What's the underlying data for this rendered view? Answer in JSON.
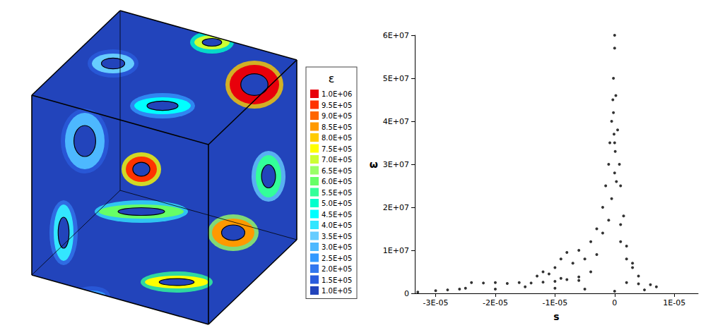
{
  "chart_data": [
    {
      "type": "contour",
      "colorbar": {
        "title": "ε",
        "ticks": [
          {
            "value": 1000000,
            "label": "1.0E+06"
          },
          {
            "value": 950000,
            "label": "9.5E+05"
          },
          {
            "value": 900000,
            "label": "9.0E+05"
          },
          {
            "value": 850000,
            "label": "8.5E+05"
          },
          {
            "value": 800000,
            "label": "8.0E+05"
          },
          {
            "value": 750000,
            "label": "7.5E+05"
          },
          {
            "value": 700000,
            "label": "7.0E+05"
          },
          {
            "value": 650000,
            "label": "6.5E+05"
          },
          {
            "value": 600000,
            "label": "6.0E+05"
          },
          {
            "value": 550000,
            "label": "5.5E+05"
          },
          {
            "value": 500000,
            "label": "5.0E+05"
          },
          {
            "value": 450000,
            "label": "4.5E+05"
          },
          {
            "value": 400000,
            "label": "4.0E+05"
          },
          {
            "value": 350000,
            "label": "3.5E+05"
          },
          {
            "value": 300000,
            "label": "3.0E+05"
          },
          {
            "value": 250000,
            "label": "2.5E+05"
          },
          {
            "value": 200000,
            "label": "2.0E+05"
          },
          {
            "value": 150000,
            "label": "1.5E+05"
          },
          {
            "value": 100000,
            "label": "1.0E+05"
          }
        ],
        "colors": [
          "#e8000b",
          "#ff3300",
          "#ff6600",
          "#ff9900",
          "#ffcc00",
          "#ffff00",
          "#ccff33",
          "#99ff66",
          "#66ff66",
          "#33ff99",
          "#00ffcc",
          "#00ffff",
          "#33e6ff",
          "#66ccff",
          "#4db8ff",
          "#3399ff",
          "#3377ee",
          "#2a5cdd",
          "#2244bb"
        ]
      }
    },
    {
      "type": "scatter",
      "x_label": "s",
      "y_label": "ω",
      "color": "#000000",
      "marker": "circle",
      "xlim": [
        -3.35e-05,
        1.4e-05
      ],
      "xticks": [
        {
          "value": -3e-05,
          "label": "-3E-05"
        },
        {
          "value": -2e-05,
          "label": "-2E-05"
        },
        {
          "value": -1e-05,
          "label": "-1E-05"
        },
        0,
        {
          "value": 1e-05,
          "label": "1E-05"
        }
      ],
      "ylim": [
        0,
        60000000
      ],
      "yticks": [
        0,
        {
          "value": 10000000,
          "label": "1E+07"
        },
        {
          "value": 20000000,
          "label": "2E+07"
        },
        {
          "value": 30000000,
          "label": "3E+07"
        },
        {
          "value": 40000000,
          "label": "4E+07"
        },
        {
          "value": 50000000,
          "label": "5E+07"
        },
        {
          "value": 60000000,
          "label": "6E+07"
        }
      ],
      "x": [
        -2.4e-05,
        -2.2e-05,
        -2e-05,
        -1.8e-05,
        -1.6e-05,
        -1.4e-05,
        -1.2e-05,
        -1e-05,
        -8e-06,
        -6e-06,
        -4e-06,
        2e-06,
        4e-06,
        6e-06,
        7e-06,
        -3.3e-05,
        -3e-05,
        -2.8e-05,
        -2.6e-05,
        -2.5e-05,
        -2e-05,
        -1.5e-05,
        -1e-05,
        -5e-06,
        0,
        5e-06,
        -1.3e-05,
        -1.2e-05,
        -1e-05,
        -9e-06,
        -8e-06,
        -7e-06,
        -6e-06,
        -5e-06,
        -4e-06,
        -3e-06,
        -2e-06,
        1e-06,
        2e-06,
        3e-06,
        4e-06,
        -1.5e-06,
        -1e-06,
        -8e-07,
        -5e-07,
        -3e-07,
        -2e-07,
        0,
        0,
        2e-07,
        5e-07,
        8e-07,
        1e-06,
        1.5e-06,
        -5e-07,
        0,
        0,
        -2e-07,
        1e-07,
        -1e-07,
        3e-07,
        -2e-06,
        2e-06,
        -3e-06,
        3e-06,
        -1e-06,
        1e-06,
        -6e-06,
        -9e-06,
        -1.1e-05
      ],
      "values": [
        2500000,
        2400000,
        2500000,
        2300000,
        2500000,
        2400000,
        2600000,
        2800000,
        3200000,
        3800000,
        5000000,
        2500000,
        2200000,
        2000000,
        1500000,
        300000,
        600000,
        800000,
        1000000,
        1200000,
        1000000,
        1500000,
        1200000,
        1000000,
        500000,
        800000,
        4000000,
        5000000,
        6000000,
        8000000,
        9500000,
        7000000,
        10000000,
        8000000,
        12000000,
        15000000,
        20000000,
        12000000,
        8000000,
        6000000,
        4000000,
        25000000,
        30000000,
        35000000,
        40000000,
        45000000,
        50000000,
        57000000,
        60000000,
        46000000,
        38000000,
        30000000,
        25000000,
        18000000,
        22000000,
        35000000,
        28000000,
        42000000,
        33000000,
        37000000,
        26000000,
        14000000,
        11000000,
        9000000,
        7000000,
        17000000,
        16000000,
        3000000,
        3500000,
        4500000
      ]
    }
  ]
}
